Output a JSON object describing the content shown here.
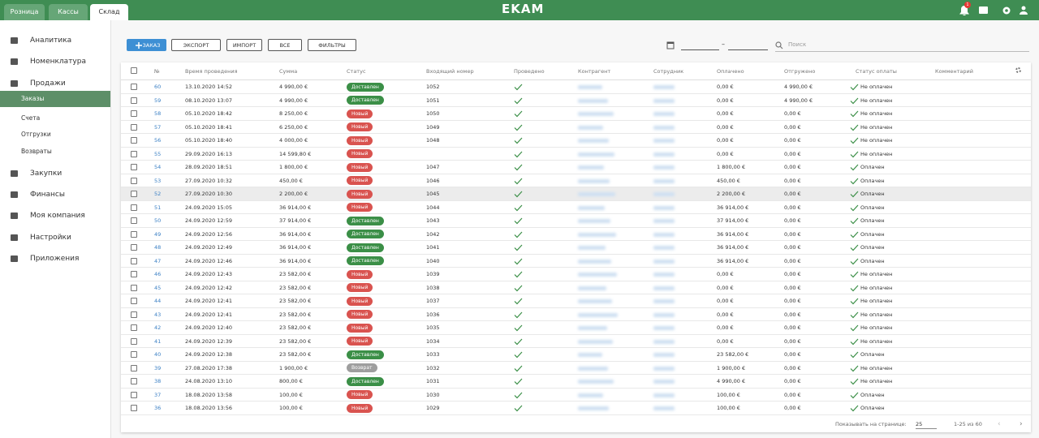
{
  "topbar": {
    "tabs": [
      "Розница",
      "Кассы",
      "Склад"
    ],
    "active_tab": 2,
    "logo": "EKAM",
    "notification_count": 1
  },
  "sidebar": {
    "items": [
      {
        "label": "Аналитика",
        "level": 1
      },
      {
        "label": "Номенклатура",
        "level": 1
      },
      {
        "label": "Продажи",
        "level": 1
      },
      {
        "label": "Заказы",
        "level": 2,
        "active": true
      },
      {
        "label": "Счета",
        "level": 2
      },
      {
        "label": "Отгрузки",
        "level": 2
      },
      {
        "label": "Возвраты",
        "level": 2
      },
      {
        "label": "Закупки",
        "level": 1
      },
      {
        "label": "Финансы",
        "level": 1
      },
      {
        "label": "Моя компания",
        "level": 1
      },
      {
        "label": "Настройки",
        "level": 1
      },
      {
        "label": "Приложения",
        "level": 1
      }
    ]
  },
  "toolbar": {
    "buttons": [
      "ЗАКАЗ",
      "ЭКСПОРТ",
      "ИМПОРТ",
      "ВСЕ",
      "ФИЛЬТРЫ"
    ],
    "date_separator": "–",
    "search_placeholder": "Поиск"
  },
  "table": {
    "columns": [
      "№",
      "Время проведения",
      "Сумма",
      "Статус",
      "Входящий номер",
      "Проведено",
      "Контрагент",
      "Сотрудник",
      "Оплачено",
      "Отгружено",
      "Статус оплаты",
      "Комментарий"
    ],
    "status_colors": {
      "Доставлен": "#3b8f47",
      "Новый": "#d9534f",
      "Возврат": "#9e9e9e"
    },
    "rows": [
      [
        60,
        "13.10.2020 14:52",
        "4 990,00 €",
        "Доставлен",
        1052,
        "0,00 €",
        "4 990,00 €",
        "Не оплачен"
      ],
      [
        59,
        "08.10.2020 13:07",
        "4 990,00 €",
        "Доставлен",
        1051,
        "0,00 €",
        "4 990,00 €",
        "Не оплачен"
      ],
      [
        58,
        "05.10.2020 18:42",
        "8 250,00 €",
        "Новый",
        1050,
        "0,00 €",
        "0,00 €",
        "Не оплачен"
      ],
      [
        57,
        "05.10.2020 18:41",
        "6 250,00 €",
        "Новый",
        1049,
        "0,00 €",
        "0,00 €",
        "Не оплачен"
      ],
      [
        56,
        "05.10.2020 18:40",
        "4 000,00 €",
        "Новый",
        1048,
        "0,00 €",
        "0,00 €",
        "Не оплачен"
      ],
      [
        55,
        "29.09.2020 16:13",
        "14 599,80 €",
        "Новый",
        null,
        "0,00 €",
        "0,00 €",
        "Не оплачен"
      ],
      [
        54,
        "28.09.2020 18:51",
        "1 800,00 €",
        "Новый",
        1047,
        "1 800,00 €",
        "0,00 €",
        "Оплачен"
      ],
      [
        53,
        "27.09.2020 10:32",
        "450,00 €",
        "Новый",
        1046,
        "450,00 €",
        "0,00 €",
        "Оплачен"
      ],
      [
        52,
        "27.09.2020 10:30",
        "2 200,00 €",
        "Новый",
        1045,
        "2 200,00 €",
        "0,00 €",
        "Оплачен"
      ],
      [
        51,
        "24.09.2020 15:05",
        "36 914,00 €",
        "Новый",
        1044,
        "36 914,00 €",
        "0,00 €",
        "Оплачен"
      ],
      [
        50,
        "24.09.2020 12:59",
        "37 914,00 €",
        "Доставлен",
        1043,
        "37 914,00 €",
        "0,00 €",
        "Оплачен"
      ],
      [
        49,
        "24.09.2020 12:56",
        "36 914,00 €",
        "Доставлен",
        1042,
        "36 914,00 €",
        "0,00 €",
        "Оплачен"
      ],
      [
        48,
        "24.09.2020 12:49",
        "36 914,00 €",
        "Доставлен",
        1041,
        "36 914,00 €",
        "0,00 €",
        "Оплачен"
      ],
      [
        47,
        "24.09.2020 12:46",
        "36 914,00 €",
        "Доставлен",
        1040,
        "36 914,00 €",
        "0,00 €",
        "Оплачен"
      ],
      [
        46,
        "24.09.2020 12:43",
        "23 582,00 €",
        "Новый",
        1039,
        "0,00 €",
        "0,00 €",
        "Не оплачен"
      ],
      [
        45,
        "24.09.2020 12:42",
        "23 582,00 €",
        "Новый",
        1038,
        "0,00 €",
        "0,00 €",
        "Не оплачен"
      ],
      [
        44,
        "24.09.2020 12:41",
        "23 582,00 €",
        "Новый",
        1037,
        "0,00 €",
        "0,00 €",
        "Не оплачен"
      ],
      [
        43,
        "24.09.2020 12:41",
        "23 582,00 €",
        "Новый",
        1036,
        "0,00 €",
        "0,00 €",
        "Не оплачен"
      ],
      [
        42,
        "24.09.2020 12:40",
        "23 582,00 €",
        "Новый",
        1035,
        "0,00 €",
        "0,00 €",
        "Не оплачен"
      ],
      [
        41,
        "24.09.2020 12:39",
        "23 582,00 €",
        "Новый",
        1034,
        "0,00 €",
        "0,00 €",
        "Не оплачен"
      ],
      [
        40,
        "24.09.2020 12:38",
        "23 582,00 €",
        "Доставлен",
        1033,
        "23 582,00 €",
        "0,00 €",
        "Оплачен"
      ],
      [
        39,
        "27.08.2020 17:38",
        "1 900,00 €",
        "Возврат",
        1032,
        "1 900,00 €",
        "0,00 €",
        "Не оплачен"
      ],
      [
        38,
        "24.08.2020 13:10",
        "800,00 €",
        "Доставлен",
        1031,
        "4 990,00 €",
        "0,00 €",
        "Не оплачен"
      ],
      [
        37,
        "18.08.2020 13:58",
        "100,00 €",
        "Новый",
        1030,
        "100,00 €",
        "0,00 €",
        "Оплачен"
      ],
      [
        36,
        "18.08.2020 13:56",
        "100,00 €",
        "Новый",
        1029,
        "100,00 €",
        "0,00 €",
        "Оплачен"
      ]
    ],
    "hovered_row": 8
  },
  "footer": {
    "page_size_label": "Показывать на странице:",
    "page_size": 25,
    "range": "1-25 из 60"
  }
}
